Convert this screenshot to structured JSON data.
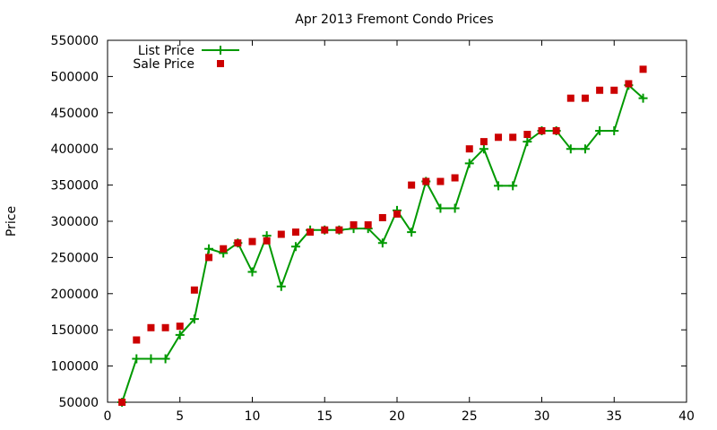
{
  "chart_data": {
    "type": "line",
    "title": "Apr 2013 Fremont Condo Prices",
    "xlabel": "",
    "ylabel": "Price",
    "xlim": [
      0,
      40
    ],
    "ylim": [
      50000,
      550000
    ],
    "xticks": [
      0,
      5,
      10,
      15,
      20,
      25,
      30,
      35,
      40
    ],
    "yticks": [
      50000,
      100000,
      150000,
      200000,
      250000,
      300000,
      350000,
      400000,
      450000,
      500000,
      550000
    ],
    "grid": false,
    "legend_position": "top-left",
    "series": [
      {
        "name": "List Price",
        "style": "line-plus",
        "color": "#009900",
        "x": [
          1,
          2,
          3,
          4,
          5,
          6,
          7,
          8,
          9,
          10,
          11,
          12,
          13,
          14,
          15,
          16,
          17,
          18,
          19,
          20,
          21,
          22,
          23,
          24,
          25,
          26,
          27,
          28,
          29,
          30,
          31,
          32,
          33,
          34,
          35,
          36,
          37
        ],
        "y": [
          50000,
          110000,
          110000,
          110000,
          143000,
          165000,
          262000,
          256000,
          270000,
          230000,
          280000,
          210000,
          265000,
          288000,
          288000,
          288000,
          290000,
          290000,
          270000,
          315000,
          285000,
          355000,
          318000,
          318000,
          380000,
          400000,
          349000,
          349000,
          410000,
          425000,
          425000,
          400000,
          400000,
          425000,
          425000,
          488000,
          470000
        ]
      },
      {
        "name": "Sale Price",
        "style": "square",
        "color": "#cc0000",
        "x": [
          1,
          2,
          3,
          4,
          5,
          6,
          7,
          8,
          9,
          10,
          11,
          12,
          13,
          14,
          15,
          16,
          17,
          18,
          19,
          20,
          21,
          22,
          23,
          24,
          25,
          26,
          27,
          28,
          29,
          30,
          31,
          32,
          33,
          34,
          35,
          36,
          37
        ],
        "y": [
          50000,
          136000,
          153000,
          153000,
          155000,
          205000,
          250000,
          262000,
          270000,
          272000,
          273000,
          282000,
          285000,
          285000,
          288000,
          288000,
          295000,
          295000,
          305000,
          310000,
          350000,
          355000,
          355000,
          360000,
          400000,
          410000,
          416000,
          416000,
          420000,
          425000,
          425000,
          470000,
          470000,
          481000,
          481000,
          490000,
          510000
        ]
      }
    ]
  }
}
